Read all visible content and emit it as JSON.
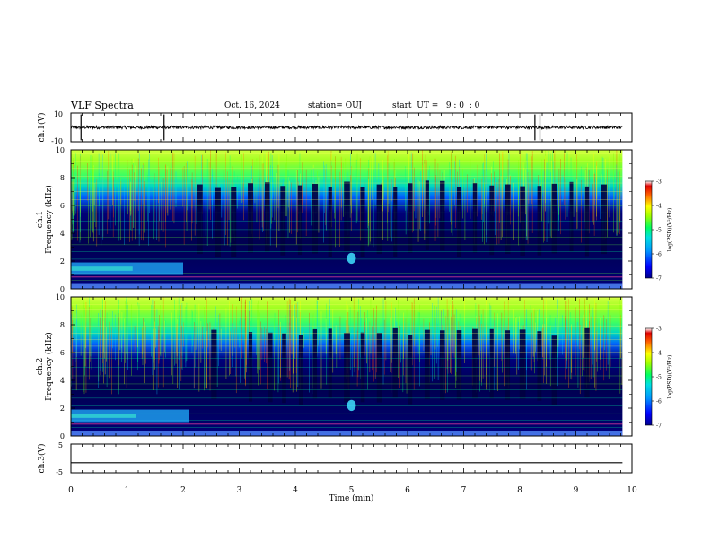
{
  "header": {
    "title": "VLF Spectra",
    "date": "Oct. 16, 2024",
    "station": "station= OUJ",
    "start": "start  UT =   9 : 0  : 0"
  },
  "chart_data": [
    {
      "type": "line",
      "panel": "ch1-waveform",
      "ylabel": "ch.1(V)",
      "ylim": [
        -10,
        10
      ],
      "ytick_labels": [
        "10",
        "-10"
      ],
      "xlim": [
        0,
        10
      ],
      "series": [
        {
          "values_description_free": true,
          "baseline": 0,
          "noise_amplitude": 1,
          "spike_times_min": [
            0.18,
            1.66,
            8.27,
            8.36
          ]
        }
      ]
    },
    {
      "type": "heatmap",
      "panel": "ch1-spectrogram",
      "ylabel": "ch.1\nFrequency (kHz)",
      "ylabel_line1": "ch.1",
      "ylabel_line2": "Frequency (kHz)",
      "ylim": [
        0,
        10
      ],
      "ytick_labels": [
        "0",
        "2",
        "4",
        "6",
        "8",
        "10"
      ],
      "xlim": [
        0,
        9.83
      ],
      "colorbar": {
        "label": "log(PSD)(V²/Hz)",
        "range": [
          -7,
          -3
        ],
        "ticks": [
          "-3",
          "-4",
          "-5",
          "-6",
          "-7"
        ]
      },
      "sferic_dark_columns_min": [
        2.3,
        2.62,
        2.9,
        3.2,
        3.5,
        3.78,
        4.08,
        4.35,
        4.62,
        4.92,
        5.2,
        5.5,
        5.78,
        6.05,
        6.35,
        6.62,
        6.92,
        7.2,
        7.5,
        7.78,
        8.05,
        8.35,
        8.62,
        8.92,
        9.2,
        9.5
      ],
      "hiss_band_khz": [
        1.0,
        1.9
      ],
      "hiss_time_range_min": [
        0,
        2.0
      ],
      "burst_time_min": 5.0,
      "burst_freq_khz": [
        1.8,
        2.6
      ]
    },
    {
      "type": "heatmap",
      "panel": "ch2-spectrogram",
      "ylabel": "ch.2\nFrequency (kHz)",
      "ylabel_line1": "ch.2",
      "ylabel_line2": "Frequency (kHz)",
      "ylim": [
        0,
        10
      ],
      "ytick_labels": [
        "0",
        "2",
        "4",
        "6",
        "8",
        "10"
      ],
      "xlim": [
        0,
        9.83
      ],
      "colorbar": {
        "label": "log(PSD)(V²/Hz)",
        "range": [
          -7,
          -3
        ],
        "ticks": [
          "-3",
          "-4",
          "-5",
          "-6",
          "-7"
        ]
      },
      "sferic_dark_columns_min": [
        2.55,
        3.2,
        3.55,
        3.8,
        4.1,
        4.35,
        4.62,
        4.92,
        5.2,
        5.5,
        5.78,
        6.05,
        6.35,
        6.62,
        6.92,
        7.2,
        7.5,
        7.78,
        8.05,
        8.35,
        8.62,
        9.2
      ],
      "hiss_band_khz": [
        1.0,
        1.9
      ],
      "hiss_time_range_min": [
        0,
        2.1
      ],
      "burst_time_min": 5.0,
      "burst_freq_khz": [
        1.8,
        2.6
      ]
    },
    {
      "type": "line",
      "panel": "ch3-waveform",
      "ylabel": "ch.3(V)",
      "ylim": [
        -5,
        5
      ],
      "ytick_labels": [
        "5",
        "-5"
      ],
      "xlim": [
        0,
        10
      ],
      "series": [
        {
          "constant_value": -1.5
        }
      ]
    }
  ],
  "xaxis": {
    "label": "Time (min)",
    "ticks": [
      "0",
      "1",
      "2",
      "3",
      "4",
      "5",
      "6",
      "7",
      "8",
      "9",
      "10"
    ],
    "range": [
      0,
      10
    ]
  },
  "colors": {
    "colormap": [
      "#00008b",
      "#0000ff",
      "#0080ff",
      "#00c8ff",
      "#00ff80",
      "#80ff00",
      "#ffff00",
      "#ff8000",
      "#ff0000",
      "#800000"
    ]
  }
}
